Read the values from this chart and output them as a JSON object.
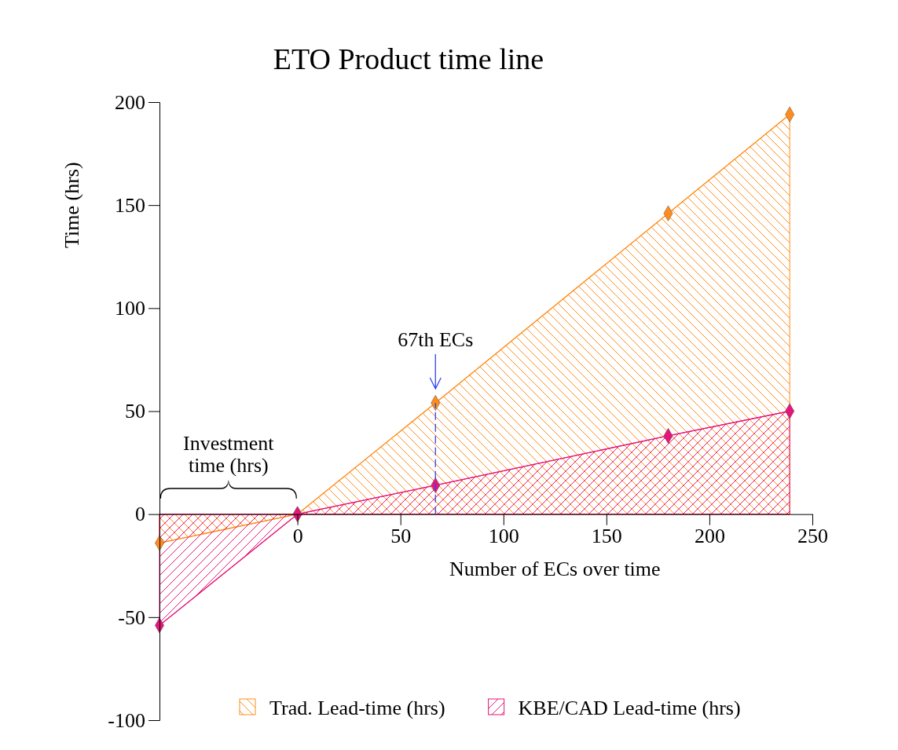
{
  "chart_data": {
    "type": "area",
    "title": "ETO Product time line",
    "xlabel": "Number of ECs over time",
    "ylabel": "Time (hrs)",
    "x": [
      -67,
      0,
      67,
      180,
      239
    ],
    "series": [
      {
        "name": "Trad. Lead-time (hrs)",
        "color": "#ff8c1a",
        "values": [
          -14,
          0,
          54,
          146,
          194
        ]
      },
      {
        "name": "KBE/CAD Lead-time (hrs)",
        "color": "#e6157a",
        "values": [
          -54,
          0,
          14,
          38,
          50
        ]
      }
    ],
    "xlim": [
      -67,
      250
    ],
    "xticks": [
      0,
      50,
      100,
      150,
      200,
      250
    ],
    "ylim": [
      -100,
      200
    ],
    "yticks": [
      -100,
      -50,
      0,
      50,
      100,
      150,
      200
    ],
    "marker": "diamond",
    "legend": "bottom",
    "grid": false,
    "annotations": [
      {
        "text": "67th ECs",
        "x": 67,
        "y": 54
      },
      "Investment time (hrs)"
    ]
  }
}
